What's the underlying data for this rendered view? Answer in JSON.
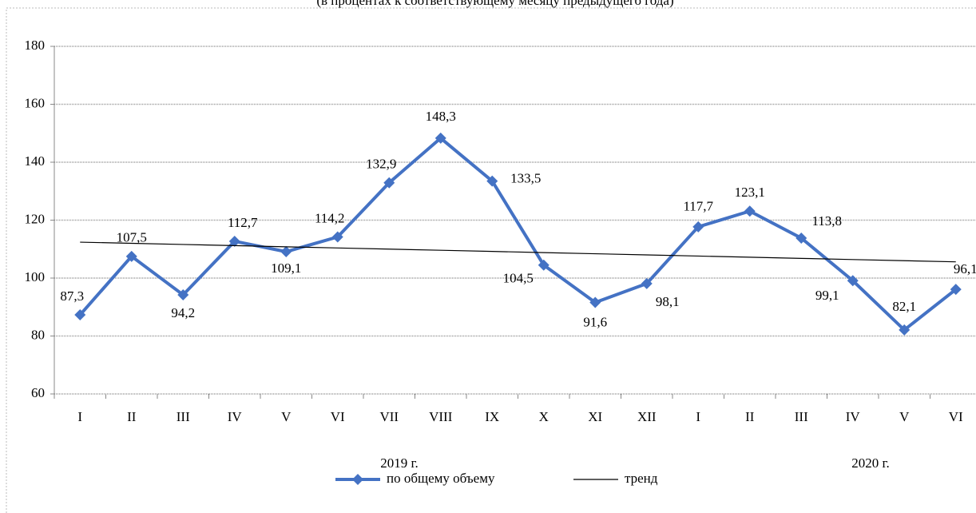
{
  "chart_data": {
    "type": "line",
    "title": "(в процентах к соответствующему месяцу предыдущего года)",
    "categories": [
      "I",
      "II",
      "III",
      "IV",
      "V",
      "VI",
      "VII",
      "VIII",
      "IX",
      "X",
      "XI",
      "XII",
      "I",
      "II",
      "III",
      "IV",
      "V",
      "VI"
    ],
    "year_groups": [
      {
        "label": "2019 г.",
        "count": 12
      },
      {
        "label": "2020 г.",
        "count": 6
      }
    ],
    "series": [
      {
        "name": "по общему объему",
        "color": "#4472c4",
        "marker": "diamond",
        "values": [
          87.3,
          107.5,
          94.2,
          112.7,
          109.1,
          114.2,
          132.9,
          148.3,
          133.5,
          104.5,
          91.6,
          98.1,
          117.7,
          123.1,
          113.8,
          99.1,
          82.1,
          96.1
        ],
        "value_labels": [
          "87,3",
          "107,5",
          "94,2",
          "112,7",
          "109,1",
          "114,2",
          "132,9",
          "148,3",
          "133,5",
          "104,5",
          "91,6",
          "98,1",
          "117,7",
          "123,1",
          "113,8",
          "99,1",
          "82,1",
          "96,1"
        ]
      },
      {
        "name": "тренд",
        "color": "#000000",
        "values": [
          112.4,
          112.0,
          111.6,
          111.2,
          110.8,
          110.4,
          110.0,
          109.6,
          109.2,
          108.8,
          108.4,
          108.0,
          107.6,
          107.2,
          106.8,
          106.4,
          106.0,
          105.6
        ]
      }
    ],
    "ylim": [
      60,
      180
    ],
    "yticks": [
      60,
      80,
      100,
      120,
      140,
      160,
      180
    ],
    "grid": true,
    "legend": "bottom"
  }
}
